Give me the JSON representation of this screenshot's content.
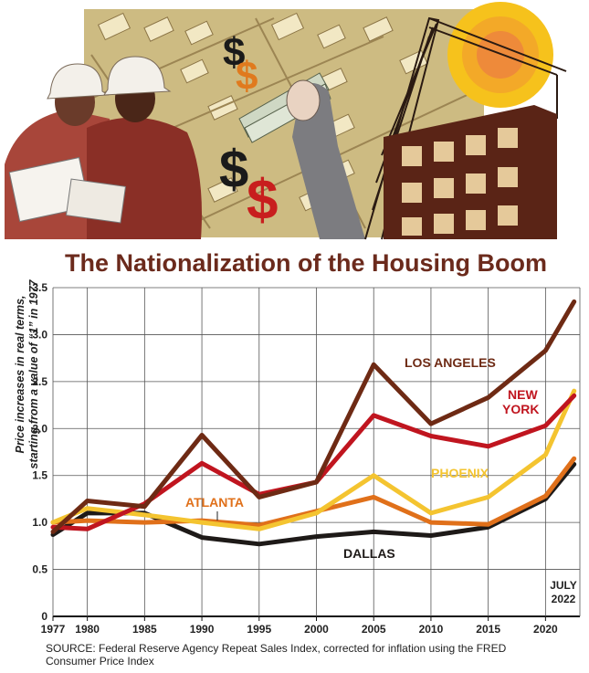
{
  "illustration": {
    "description_icons": [
      "hardhat-worker-icon",
      "dollar-sign-icon",
      "cash-in-hand-icon",
      "construction-crane-icon",
      "sun-icon",
      "building-frame-icon",
      "aerial-houses-icon"
    ]
  },
  "chart_data": {
    "type": "line",
    "title": "The Nationalization of the Housing Boom",
    "ylabel_line1": "Price increases in real terms,",
    "ylabel_line2": "starting from a value of “1” in 1977",
    "xlabel": "",
    "ylim": [
      0,
      3.5
    ],
    "yticks": [
      "0",
      "0.5",
      "1.0",
      "1.5",
      "2.0",
      "2.5",
      "3.0",
      "3.5"
    ],
    "xticks": [
      "1977",
      "1980",
      "1985",
      "1990",
      "1995",
      "2000",
      "2005",
      "2010",
      "2015",
      "2020"
    ],
    "x": [
      1977,
      1980,
      1985,
      1990,
      1995,
      2000,
      2005,
      2010,
      2015,
      2020,
      2022.5
    ],
    "series": [
      {
        "name": "LOS ANGELES",
        "color": "#6e2a14",
        "values": [
          0.9,
          1.23,
          1.17,
          1.93,
          1.27,
          1.43,
          2.68,
          2.05,
          2.33,
          2.83,
          3.35
        ]
      },
      {
        "name": "NEW YORK",
        "color": "#c0151f",
        "values": [
          0.95,
          0.93,
          1.2,
          1.63,
          1.3,
          1.43,
          2.14,
          1.92,
          1.81,
          2.03,
          2.35
        ]
      },
      {
        "name": "PHOENIX",
        "color": "#f4c430",
        "values": [
          1.0,
          1.15,
          1.08,
          1.0,
          0.93,
          1.1,
          1.5,
          1.1,
          1.27,
          1.72,
          2.4
        ]
      },
      {
        "name": "ATLANTA",
        "color": "#e0701a",
        "values": [
          1.0,
          1.02,
          1.0,
          1.02,
          0.97,
          1.12,
          1.27,
          1.0,
          0.98,
          1.28,
          1.68
        ]
      },
      {
        "name": "DALLAS",
        "color": "#1e1a18",
        "values": [
          0.87,
          1.1,
          1.1,
          0.84,
          0.77,
          0.85,
          0.9,
          0.86,
          0.95,
          1.25,
          1.62
        ]
      }
    ],
    "annotation": {
      "line1": "JULY",
      "line2": "2022"
    },
    "grid": true,
    "legend": "inline labels"
  },
  "source": {
    "line1": "SOURCE: Federal Reserve Agency Repeat Sales Index, corrected for inflation using the FRED",
    "line2": "Consumer Price Index"
  }
}
